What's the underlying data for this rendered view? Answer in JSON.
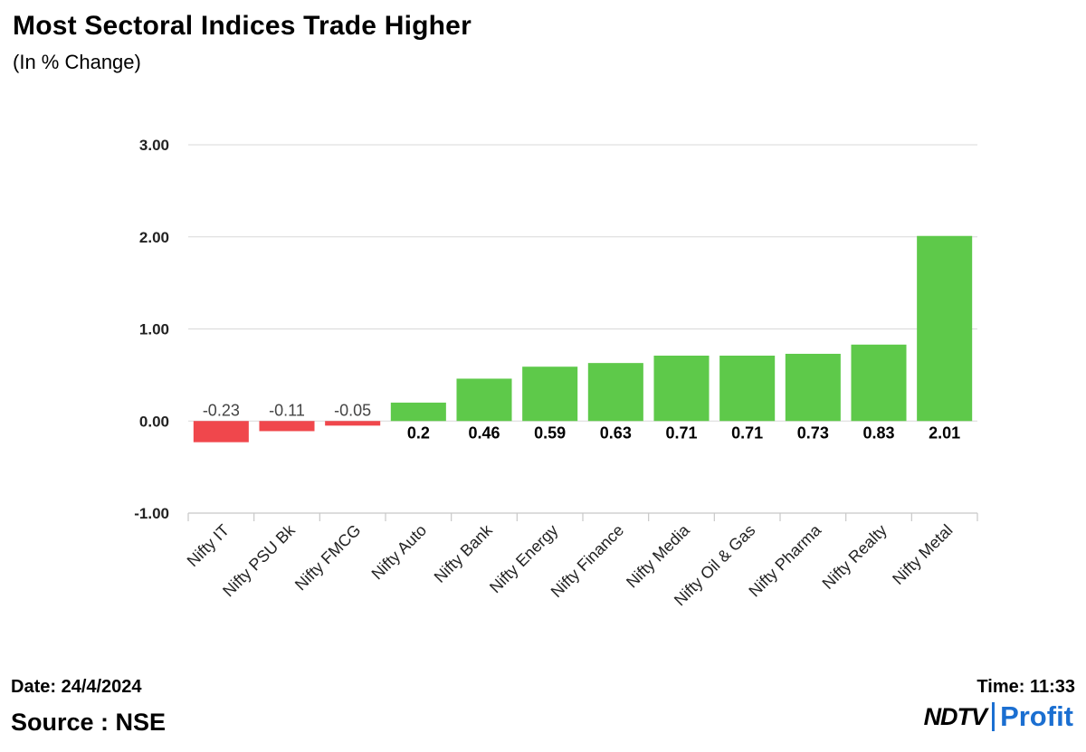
{
  "header": {
    "title": "Most Sectoral Indices Trade Higher",
    "subtitle": "(In % Change)"
  },
  "footer": {
    "date": "Date: 24/4/2024",
    "time": "Time: 11:33",
    "source": "Source : NSE",
    "logo_left": "NDTV",
    "logo_right": "Profit"
  },
  "colors": {
    "positive": "#5ec94a",
    "negative": "#f0474c",
    "grid": "#d9d9d9",
    "brand": "#1b6fd1"
  },
  "chart_data": {
    "type": "bar",
    "categories": [
      "Nifty IT",
      "Nifty PSU Bk",
      "Nifty FMCG",
      "Nifty Auto",
      "Nifty Bank",
      "Nifty Energy",
      "Nifty Finance",
      "Nifty Media",
      "Nifty Oil & Gas",
      "Nifty Pharma",
      "Nifty Realty",
      "Nifty Metal"
    ],
    "values": [
      -0.23,
      -0.11,
      -0.05,
      0.2,
      0.46,
      0.59,
      0.63,
      0.71,
      0.71,
      0.73,
      0.83,
      2.01
    ],
    "data_labels": [
      "-0.23",
      "-0.11",
      "-0.05",
      "0.2",
      "0.46",
      "0.59",
      "0.63",
      "0.71",
      "0.71",
      "0.73",
      "0.83",
      "2.01"
    ],
    "title": "Most Sectoral Indices Trade Higher",
    "subtitle": "(In % Change)",
    "ylim": [
      -1,
      3
    ],
    "yticks": [
      3,
      2,
      1,
      0,
      -1
    ],
    "ytick_labels": [
      "3.00",
      "2.00",
      "1.00",
      "0.00",
      "-1.00"
    ],
    "grid": true,
    "legend": "none"
  }
}
